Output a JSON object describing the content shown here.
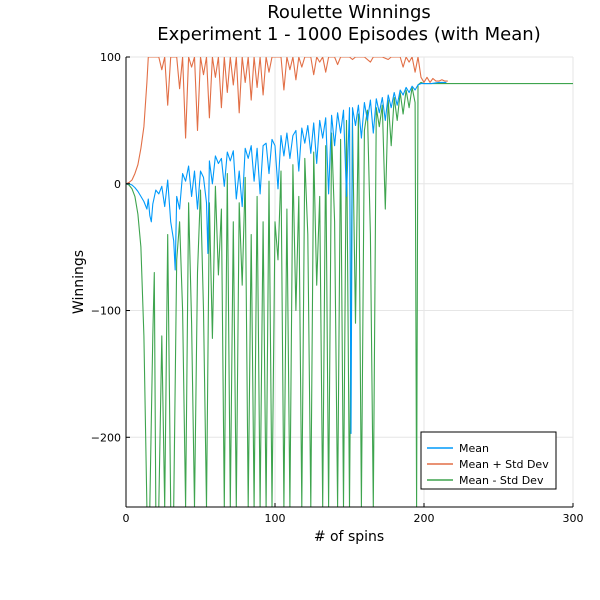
{
  "chart_data": {
    "type": "line",
    "title": [
      "Roulette Winnings",
      "Experiment 1 - 1000 Episodes (with Mean)"
    ],
    "xlabel": "# of spins",
    "ylabel": "Winnings",
    "xlim": [
      0,
      300
    ],
    "ylim": [
      -255,
      100
    ],
    "xticks": [
      0,
      100,
      200,
      300
    ],
    "yticks": [
      -200,
      -100,
      0,
      100
    ],
    "xtick_labels": [
      "0",
      "100",
      "200",
      "300"
    ],
    "ytick_labels": [
      "−200",
      "−100",
      "0",
      "100"
    ],
    "grid": true,
    "legend_position": "bottom-right",
    "series": [
      {
        "name": "Mean",
        "color": "#009AFA",
        "points": [
          [
            0,
            0
          ],
          [
            2,
            0
          ],
          [
            4,
            -1
          ],
          [
            6,
            -3
          ],
          [
            8,
            -6
          ],
          [
            10,
            -10
          ],
          [
            12,
            -14
          ],
          [
            14,
            -20
          ],
          [
            15,
            -12
          ],
          [
            16,
            -25
          ],
          [
            17,
            -30
          ],
          [
            18,
            -16
          ],
          [
            20,
            -5
          ],
          [
            22,
            -8
          ],
          [
            24,
            -2
          ],
          [
            26,
            -18
          ],
          [
            28,
            3
          ],
          [
            30,
            -30
          ],
          [
            32,
            -45
          ],
          [
            33,
            -68
          ],
          [
            34,
            -10
          ],
          [
            36,
            -20
          ],
          [
            38,
            8
          ],
          [
            40,
            2
          ],
          [
            42,
            14
          ],
          [
            44,
            -10
          ],
          [
            46,
            10
          ],
          [
            48,
            -20
          ],
          [
            50,
            10
          ],
          [
            52,
            5
          ],
          [
            54,
            -15
          ],
          [
            55,
            -55
          ],
          [
            56,
            18
          ],
          [
            58,
            0
          ],
          [
            60,
            22
          ],
          [
            62,
            16
          ],
          [
            64,
            20
          ],
          [
            66,
            -2
          ],
          [
            68,
            25
          ],
          [
            70,
            18
          ],
          [
            72,
            26
          ],
          [
            74,
            -12
          ],
          [
            76,
            10
          ],
          [
            78,
            -18
          ],
          [
            80,
            28
          ],
          [
            82,
            20
          ],
          [
            84,
            30
          ],
          [
            86,
            2
          ],
          [
            88,
            28
          ],
          [
            90,
            -8
          ],
          [
            92,
            30
          ],
          [
            94,
            32
          ],
          [
            96,
            8
          ],
          [
            98,
            35
          ],
          [
            100,
            30
          ],
          [
            102,
            -4
          ],
          [
            104,
            38
          ],
          [
            106,
            22
          ],
          [
            108,
            40
          ],
          [
            110,
            20
          ],
          [
            112,
            38
          ],
          [
            114,
            42
          ],
          [
            116,
            10
          ],
          [
            118,
            44
          ],
          [
            120,
            32
          ],
          [
            122,
            46
          ],
          [
            124,
            24
          ],
          [
            126,
            48
          ],
          [
            128,
            16
          ],
          [
            130,
            50
          ],
          [
            132,
            36
          ],
          [
            134,
            52
          ],
          [
            136,
            -8
          ],
          [
            138,
            54
          ],
          [
            140,
            30
          ],
          [
            142,
            56
          ],
          [
            144,
            40
          ],
          [
            146,
            58
          ],
          [
            148,
            -10
          ],
          [
            150,
            60
          ],
          [
            151,
            -197
          ],
          [
            152,
            60
          ],
          [
            154,
            46
          ],
          [
            156,
            62
          ],
          [
            158,
            36
          ],
          [
            160,
            64
          ],
          [
            162,
            50
          ],
          [
            164,
            66
          ],
          [
            166,
            40
          ],
          [
            168,
            67
          ],
          [
            170,
            56
          ],
          [
            172,
            68
          ],
          [
            174,
            50
          ],
          [
            176,
            70
          ],
          [
            178,
            60
          ],
          [
            180,
            72
          ],
          [
            182,
            62
          ],
          [
            184,
            74
          ],
          [
            186,
            70
          ],
          [
            188,
            76
          ],
          [
            190,
            72
          ],
          [
            192,
            77
          ],
          [
            194,
            74
          ],
          [
            196,
            78
          ],
          [
            198,
            79
          ],
          [
            200,
            79
          ],
          [
            205,
            79
          ],
          [
            210,
            80
          ],
          [
            215,
            80
          ]
        ]
      },
      {
        "name": "Mean + Std Dev",
        "color": "#E26F46",
        "points": [
          [
            0,
            0
          ],
          [
            2,
            1
          ],
          [
            4,
            3
          ],
          [
            6,
            8
          ],
          [
            8,
            15
          ],
          [
            10,
            28
          ],
          [
            12,
            45
          ],
          [
            14,
            80
          ],
          [
            15,
            100
          ],
          [
            16,
            100
          ],
          [
            18,
            100
          ],
          [
            22,
            100
          ],
          [
            24,
            90
          ],
          [
            26,
            100
          ],
          [
            28,
            62
          ],
          [
            30,
            100
          ],
          [
            32,
            100
          ],
          [
            34,
            100
          ],
          [
            36,
            75
          ],
          [
            38,
            100
          ],
          [
            40,
            36
          ],
          [
            42,
            100
          ],
          [
            44,
            92
          ],
          [
            46,
            100
          ],
          [
            48,
            42
          ],
          [
            50,
            100
          ],
          [
            52,
            86
          ],
          [
            54,
            100
          ],
          [
            56,
            52
          ],
          [
            58,
            100
          ],
          [
            60,
            84
          ],
          [
            62,
            100
          ],
          [
            64,
            60
          ],
          [
            66,
            100
          ],
          [
            68,
            72
          ],
          [
            70,
            100
          ],
          [
            72,
            78
          ],
          [
            74,
            100
          ],
          [
            76,
            56
          ],
          [
            78,
            100
          ],
          [
            80,
            80
          ],
          [
            82,
            100
          ],
          [
            84,
            66
          ],
          [
            86,
            100
          ],
          [
            88,
            76
          ],
          [
            90,
            100
          ],
          [
            92,
            70
          ],
          [
            94,
            100
          ],
          [
            96,
            88
          ],
          [
            98,
            100
          ],
          [
            100,
            100
          ],
          [
            104,
            100
          ],
          [
            106,
            74
          ],
          [
            108,
            100
          ],
          [
            110,
            90
          ],
          [
            112,
            100
          ],
          [
            114,
            82
          ],
          [
            116,
            100
          ],
          [
            118,
            92
          ],
          [
            120,
            100
          ],
          [
            124,
            100
          ],
          [
            126,
            86
          ],
          [
            128,
            100
          ],
          [
            130,
            96
          ],
          [
            132,
            100
          ],
          [
            134,
            88
          ],
          [
            136,
            100
          ],
          [
            140,
            100
          ],
          [
            142,
            94
          ],
          [
            144,
            100
          ],
          [
            150,
            100
          ],
          [
            152,
            98
          ],
          [
            154,
            100
          ],
          [
            160,
            100
          ],
          [
            164,
            96
          ],
          [
            166,
            100
          ],
          [
            172,
            100
          ],
          [
            176,
            98
          ],
          [
            178,
            100
          ],
          [
            184,
            100
          ],
          [
            186,
            92
          ],
          [
            188,
            100
          ],
          [
            190,
            96
          ],
          [
            192,
            100
          ],
          [
            194,
            88
          ],
          [
            196,
            100
          ],
          [
            198,
            84
          ],
          [
            200,
            80
          ],
          [
            202,
            84
          ],
          [
            204,
            80
          ],
          [
            206,
            83
          ],
          [
            208,
            81
          ],
          [
            210,
            81
          ],
          [
            212,
            82
          ],
          [
            214,
            81
          ],
          [
            216,
            81
          ]
        ]
      },
      {
        "name": "Mean - Std Dev",
        "color": "#3EA44E",
        "points": [
          [
            0,
            0
          ],
          [
            2,
            -1
          ],
          [
            4,
            -4
          ],
          [
            6,
            -10
          ],
          [
            8,
            -24
          ],
          [
            10,
            -50
          ],
          [
            12,
            -120
          ],
          [
            14,
            -255
          ],
          [
            16,
            -255
          ],
          [
            18,
            -120
          ],
          [
            19,
            -70
          ],
          [
            20,
            -255
          ],
          [
            22,
            -255
          ],
          [
            24,
            -120
          ],
          [
            26,
            -255
          ],
          [
            28,
            -40
          ],
          [
            30,
            -255
          ],
          [
            32,
            -255
          ],
          [
            34,
            -60
          ],
          [
            36,
            -30
          ],
          [
            38,
            -100
          ],
          [
            40,
            -255
          ],
          [
            42,
            -15
          ],
          [
            44,
            -110
          ],
          [
            46,
            -255
          ],
          [
            48,
            -70
          ],
          [
            50,
            -5
          ],
          [
            52,
            -100
          ],
          [
            54,
            -255
          ],
          [
            56,
            -15
          ],
          [
            58,
            -122
          ],
          [
            60,
            -2
          ],
          [
            62,
            -72
          ],
          [
            64,
            -20
          ],
          [
            66,
            -255
          ],
          [
            68,
            8
          ],
          [
            70,
            -255
          ],
          [
            72,
            -30
          ],
          [
            74,
            -255
          ],
          [
            76,
            -15
          ],
          [
            78,
            -80
          ],
          [
            80,
            5
          ],
          [
            82,
            -255
          ],
          [
            84,
            -40
          ],
          [
            86,
            -255
          ],
          [
            88,
            -10
          ],
          [
            90,
            -255
          ],
          [
            92,
            -30
          ],
          [
            94,
            -255
          ],
          [
            96,
            2
          ],
          [
            98,
            -255
          ],
          [
            100,
            -30
          ],
          [
            102,
            -60
          ],
          [
            104,
            10
          ],
          [
            106,
            -255
          ],
          [
            108,
            -20
          ],
          [
            110,
            -255
          ],
          [
            112,
            15
          ],
          [
            114,
            -100
          ],
          [
            116,
            -10
          ],
          [
            118,
            -255
          ],
          [
            120,
            20
          ],
          [
            122,
            -40
          ],
          [
            124,
            -255
          ],
          [
            126,
            25
          ],
          [
            128,
            -80
          ],
          [
            130,
            -10
          ],
          [
            132,
            -255
          ],
          [
            134,
            30
          ],
          [
            136,
            -255
          ],
          [
            138,
            40
          ],
          [
            140,
            -30
          ],
          [
            142,
            -255
          ],
          [
            144,
            35
          ],
          [
            146,
            -255
          ],
          [
            148,
            50
          ],
          [
            150,
            -255
          ],
          [
            152,
            48
          ],
          [
            154,
            -110
          ],
          [
            156,
            55
          ],
          [
            158,
            -255
          ],
          [
            160,
            42
          ],
          [
            162,
            58
          ],
          [
            164,
            -40
          ],
          [
            166,
            -255
          ],
          [
            168,
            60
          ],
          [
            170,
            45
          ],
          [
            172,
            62
          ],
          [
            174,
            -20
          ],
          [
            176,
            66
          ],
          [
            178,
            30
          ],
          [
            180,
            68
          ],
          [
            182,
            50
          ],
          [
            184,
            72
          ],
          [
            186,
            55
          ],
          [
            188,
            74
          ],
          [
            190,
            60
          ],
          [
            192,
            76
          ],
          [
            194,
            64
          ],
          [
            195,
            -255
          ],
          [
            196,
            78
          ],
          [
            198,
            80
          ],
          [
            200,
            79
          ],
          [
            300,
            79
          ]
        ]
      }
    ]
  }
}
